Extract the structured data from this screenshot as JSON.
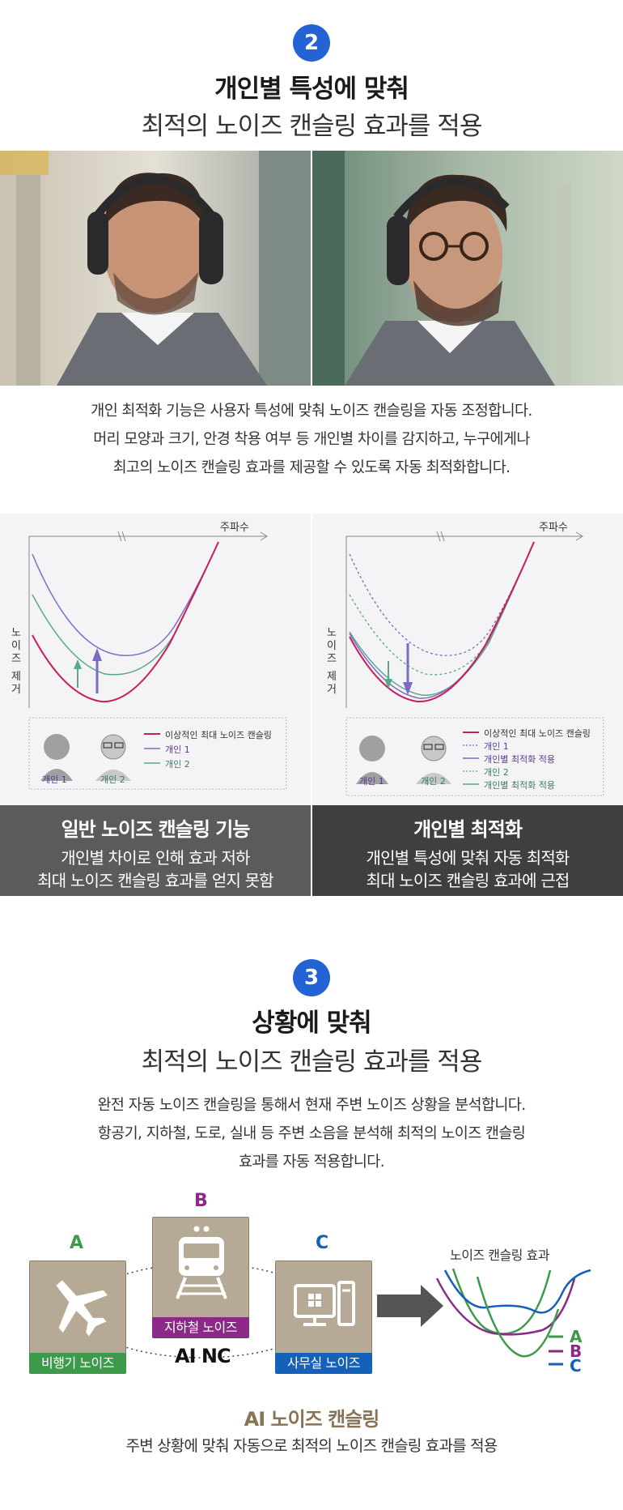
{
  "section2": {
    "number": "2",
    "title_bold": "개인별 특성에 맞춰",
    "title_light": "최적의 노이즈 캔슬링 효과를 적용",
    "body": [
      "개인 최적화 기능은 사용자 특성에 맞춰 노이즈 캔슬링을 자동 조정합니다.",
      "머리 모양과 크기, 안경 착용 여부 등 개인별 차이를 감지하고, 누구에게나",
      "최고의 노이즈 캔슬링 효과를 제공할 수 있도록 자동 최적화합니다."
    ],
    "chart_left": {
      "x_label": "주파수",
      "y_label": [
        "노",
        "이",
        "즈",
        "",
        "제",
        "거"
      ],
      "legend": [
        "이상적인 최대 노이즈 캔슬링",
        "개인 1",
        "개인 2"
      ],
      "persons": [
        "개인 1",
        "개인 2"
      ]
    },
    "chart_right": {
      "x_label": "주파수",
      "y_label": [
        "노",
        "이",
        "즈",
        "",
        "제",
        "거"
      ],
      "legend": [
        "이상적인 최대 노이즈 캔슬링",
        "개인 1",
        "개인별 최적화 적용",
        "개인 2",
        "개인별 최적화 적용"
      ],
      "persons": [
        "개인 1",
        "개인 2"
      ]
    },
    "caption_left": {
      "title": "일반 노이즈 캔슬링 기능",
      "lines": [
        "개인별 차이로 인해 효과 저하",
        "최대 노이즈 캔슬링 효과를 얻지 못함"
      ]
    },
    "caption_right": {
      "title": "개인별 최적화",
      "lines": [
        "개인별 특성에 맞춰 자동 최적화",
        "최대 노이즈 캔슬링 효과에 근접"
      ]
    }
  },
  "section3": {
    "number": "3",
    "title_bold": "상황에 맞춰",
    "title_light": "최적의 노이즈 캔슬링 효과를 적용",
    "body": [
      "완전 자동 노이즈 캔슬링을 통해서 현재 주변 노이즈 상황을 분석합니다.",
      "항공기, 지하철, 도로, 실내 등 주변 소음을 분석해 최적의 노이즈 캔슬링",
      "효과를 자동 적용합니다."
    ],
    "cards": [
      {
        "letter": "A",
        "tag": "비행기 노이즈",
        "icon": "airplane-icon"
      },
      {
        "letter": "B",
        "tag": "지하철 노이즈",
        "icon": "train-icon"
      },
      {
        "letter": "C",
        "tag": "사무실 노이즈",
        "icon": "computer-icon"
      }
    ],
    "center_label": "AI NC",
    "graph_title": "노이즈 캔슬링 효과",
    "graph_legend": [
      "A",
      "B",
      "C"
    ],
    "footer_title": "AI 노이즈 캔슬링",
    "footer_desc": "주변 상황에 맞춰 자동으로 최적의 노이즈 캔슬링 효과를 적용"
  },
  "colors": {
    "accent_blue": "#2463d6",
    "green": "#3d9a4a",
    "purple": "#8a2a86",
    "blue": "#1560b8",
    "ideal_curve": "#c81e5a",
    "person1_curve": "#7a6bc4",
    "person2_curve": "#5aa88c",
    "caption_left_bg": "#5b5b5b",
    "caption_right_bg": "#3f3f3f",
    "footer_title": "#8a7254"
  }
}
